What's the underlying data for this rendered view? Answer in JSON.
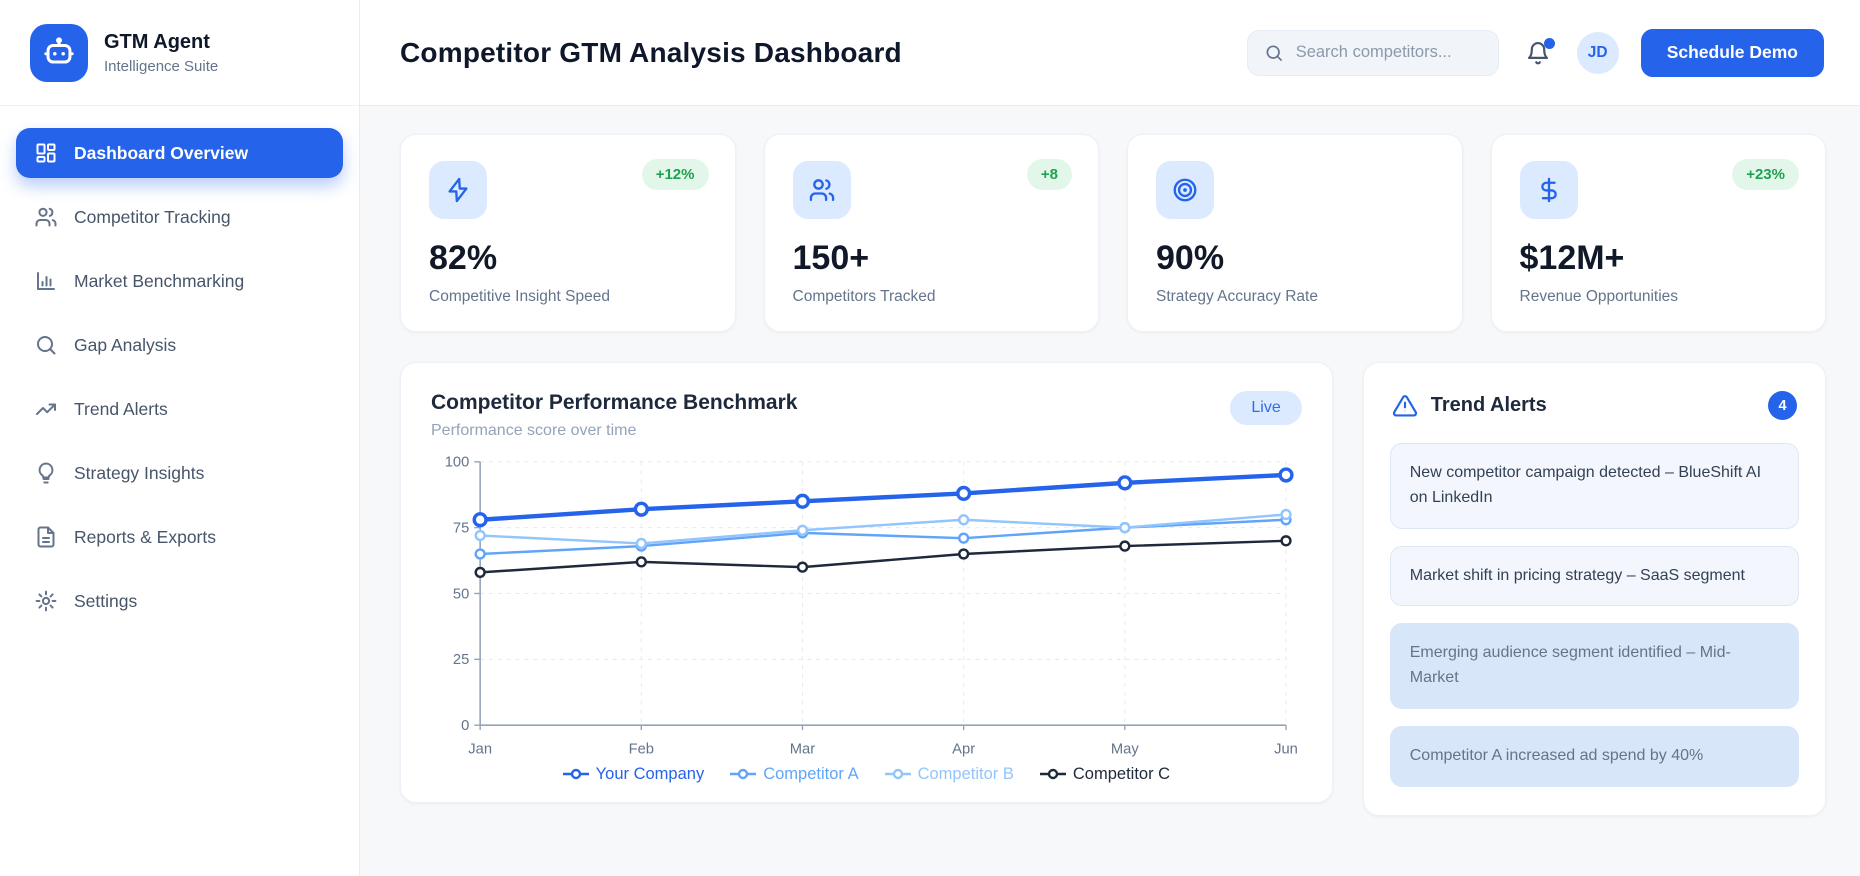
{
  "app": {
    "name": "GTM Agent",
    "tagline": "Intelligence Suite",
    "logo_icon": "robot-icon",
    "accent_color": "#2563eb"
  },
  "sidebar": {
    "items": [
      {
        "label": "Dashboard Overview",
        "icon": "dashboard-grid-icon",
        "active": true
      },
      {
        "label": "Competitor Tracking",
        "icon": "users-icon",
        "active": false
      },
      {
        "label": "Market Benchmarking",
        "icon": "bar-chart-icon",
        "active": false
      },
      {
        "label": "Gap Analysis",
        "icon": "search-icon",
        "active": false
      },
      {
        "label": "Trend Alerts",
        "icon": "trending-up-icon",
        "active": false
      },
      {
        "label": "Strategy Insights",
        "icon": "lightbulb-icon",
        "active": false
      },
      {
        "label": "Reports & Exports",
        "icon": "file-text-icon",
        "active": false
      },
      {
        "label": "Settings",
        "icon": "gear-icon",
        "active": false
      }
    ]
  },
  "header": {
    "title": "Competitor GTM Analysis Dashboard",
    "search_placeholder": "Search competitors...",
    "search_icon": "search-icon",
    "bell_icon": "bell-icon",
    "notification_dot": true,
    "avatar_initials": "JD",
    "cta_label": "Schedule Demo"
  },
  "stats": [
    {
      "icon": "lightning-icon",
      "badge": "+12%",
      "value": "82%",
      "label": "Competitive Insight Speed"
    },
    {
      "icon": "users-icon",
      "badge": "+8",
      "value": "150+",
      "label": "Competitors Tracked"
    },
    {
      "icon": "target-icon",
      "badge": "",
      "value": "90%",
      "label": "Strategy Accuracy Rate"
    },
    {
      "icon": "dollar-icon",
      "badge": "+23%",
      "value": "$12M+",
      "label": "Revenue Opportunities"
    }
  ],
  "chart_card": {
    "title": "Competitor Performance Benchmark",
    "subtitle": "Performance score over time",
    "badge": "Live"
  },
  "chart_data": {
    "type": "line",
    "x": [
      "Jan",
      "Feb",
      "Mar",
      "Apr",
      "May",
      "Jun"
    ],
    "series": [
      {
        "name": "Your Company",
        "color": "#2563eb",
        "emphasis": true,
        "values": [
          78,
          82,
          85,
          88,
          92,
          95
        ]
      },
      {
        "name": "Competitor A",
        "color": "#60a5fa",
        "emphasis": false,
        "values": [
          65,
          68,
          73,
          71,
          75,
          78
        ]
      },
      {
        "name": "Competitor B",
        "color": "#93c5fd",
        "emphasis": false,
        "values": [
          72,
          69,
          74,
          78,
          75,
          80
        ]
      },
      {
        "name": "Competitor C",
        "color": "#1e293b",
        "emphasis": false,
        "values": [
          58,
          62,
          60,
          65,
          68,
          70
        ]
      }
    ],
    "ylim": [
      0,
      100
    ],
    "yticks": [
      0,
      25,
      50,
      75,
      100
    ],
    "grid": true,
    "legend_position": "bottom"
  },
  "alerts": {
    "icon": "alert-triangle-icon",
    "title": "Trend Alerts",
    "count": "4",
    "items": [
      {
        "text": "New competitor campaign detected – BlueShift AI on LinkedIn",
        "muted": false
      },
      {
        "text": "Market shift in pricing strategy – SaaS segment",
        "muted": false
      },
      {
        "text": "Emerging audience segment identified – Mid-Market",
        "muted": true
      },
      {
        "text": "Competitor A increased ad spend by 40%",
        "muted": true
      }
    ]
  }
}
